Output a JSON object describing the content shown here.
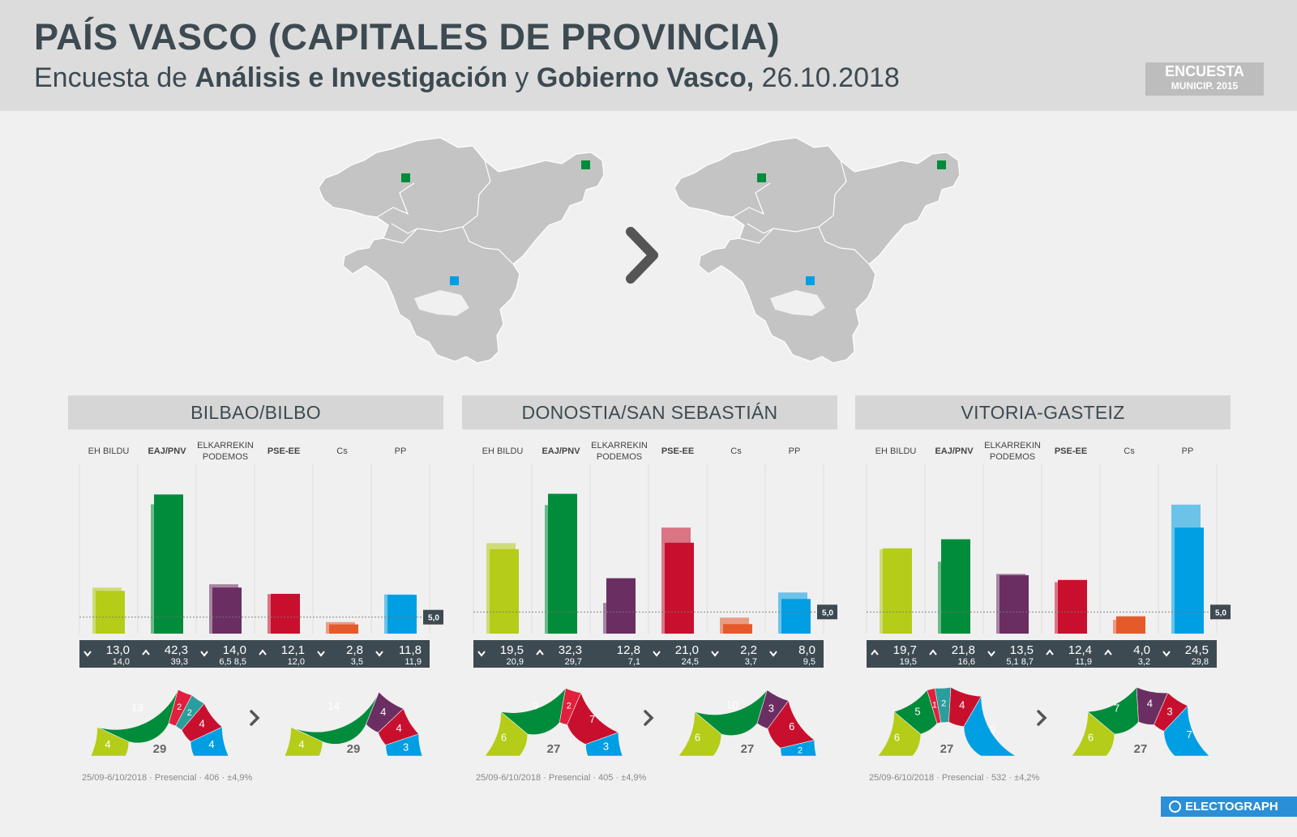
{
  "header": {
    "title": "PAÍS VASCO (CAPITALES DE PROVINCIA)",
    "subtitle_prefix": "Encuesta de ",
    "subtitle_source1": "Análisis e Investigación",
    "subtitle_and": " y ",
    "subtitle_source2": "Gobierno Vasco,",
    "subtitle_date": " 26.10.2018",
    "badge_line1": "ENCUESTA",
    "badge_line2": "MUNICIP. 2015"
  },
  "maps": {
    "left_markers": [
      "green",
      "green",
      "blue"
    ],
    "right_markers": [
      "green",
      "green",
      "blue"
    ]
  },
  "colors": {
    "ehbildu": "#b5cc18",
    "eajpnv": "#008c3a",
    "podemos": "#6b2e63",
    "pseee": "#c8102e",
    "cs": "#e55a2b",
    "pp": "#009fe3",
    "teal": "#2a9e9c",
    "bar_label_bg": "#3d4a52",
    "brand": "#2a8fd6"
  },
  "chart_data": [
    {
      "type": "bar",
      "title": "BILBAO/BILBO",
      "categories": [
        "EH BILDU",
        "EAJ/PNV",
        "ELKARREKIN PODEMOS",
        "PSE-EE",
        "Cs",
        "PP"
      ],
      "category_lines": [
        [
          "EH BILDU"
        ],
        [
          "EAJ/PNV"
        ],
        [
          "ELKARREKIN",
          "PODEMOS"
        ],
        [
          "PSE-EE"
        ],
        [
          "Cs"
        ],
        [
          "PP"
        ]
      ],
      "bold": [
        false,
        true,
        false,
        true,
        false,
        false
      ],
      "series": [
        {
          "name": "Encuesta",
          "values": [
            13.0,
            42.3,
            14.0,
            12.1,
            2.8,
            11.8
          ]
        },
        {
          "name": "Municip. 2015",
          "values": [
            14.0,
            39.3,
            15.0,
            12.0,
            3.5,
            11.9
          ]
        }
      ],
      "value_labels": [
        "13,0",
        "42,3",
        "14,0",
        "12,1",
        "2,8",
        "11,8"
      ],
      "prev_labels": [
        "14,0",
        "39,3",
        "6,5 8,5",
        "12,0",
        "3,5",
        "11,9"
      ],
      "trend": [
        "down",
        "up",
        "down",
        "up",
        "down",
        "down"
      ],
      "threshold": 5.0,
      "threshold_label": "5,0",
      "ylim": [
        0,
        50
      ],
      "seats_2015": {
        "total": "29",
        "values": [
          4,
          13,
          2,
          2,
          4,
          4
        ],
        "labels": [
          "4",
          "13",
          "2",
          "2",
          "4",
          "4"
        ],
        "party_keys": [
          "ehbildu",
          "eajpnv",
          "pseee_red",
          "teal",
          "pseee",
          "pp"
        ]
      },
      "seats_new": {
        "total": "29",
        "values": [
          4,
          14,
          4,
          4,
          3
        ],
        "labels": [
          "4",
          "14",
          "4",
          "4",
          "3"
        ],
        "party_keys": [
          "ehbildu",
          "eajpnv",
          "podemos",
          "pseee",
          "pp"
        ]
      },
      "footnote": "25/09-6/10/2018 · Presencial · 406 · ±4,9%"
    },
    {
      "type": "bar",
      "title": "DONOSTIA/SAN SEBASTIÁN",
      "categories": [
        "EH BILDU",
        "EAJ/PNV",
        "ELKARREKIN PODEMOS",
        "PSE-EE",
        "Cs",
        "PP"
      ],
      "category_lines": [
        [
          "EH BILDU"
        ],
        [
          "EAJ/PNV"
        ],
        [
          "ELKARREKIN",
          "PODEMOS"
        ],
        [
          "PSE-EE"
        ],
        [
          "Cs"
        ],
        [
          "PP"
        ]
      ],
      "bold": [
        false,
        true,
        false,
        true,
        false,
        false
      ],
      "series": [
        {
          "name": "Encuesta",
          "values": [
            19.5,
            32.3,
            12.8,
            21.0,
            2.2,
            8.0
          ]
        },
        {
          "name": "Municip. 2015",
          "values": [
            20.9,
            29.7,
            7.1,
            24.5,
            3.7,
            9.5
          ]
        }
      ],
      "value_labels": [
        "19,5",
        "32,3",
        "12,8",
        "21,0",
        "2,2",
        "8,0"
      ],
      "prev_labels": [
        "20,9",
        "29,7",
        "7,1",
        "24,5",
        "3,7",
        "9,5"
      ],
      "trend": [
        "down",
        "up",
        "",
        "down",
        "down",
        "down"
      ],
      "threshold": 5.0,
      "threshold_label": "5,0",
      "ylim": [
        0,
        38
      ],
      "seats_2015": {
        "total": "27",
        "values": [
          6,
          9,
          2,
          7,
          3
        ],
        "labels": [
          "6",
          "9",
          "2",
          "7",
          "3"
        ],
        "party_keys": [
          "ehbildu",
          "eajpnv",
          "pseee_red",
          "pseee",
          "pp"
        ]
      },
      "seats_new": {
        "total": "27",
        "values": [
          6,
          10,
          3,
          6,
          2
        ],
        "labels": [
          "6",
          "10",
          "3",
          "6",
          "2"
        ],
        "party_keys": [
          "ehbildu",
          "eajpnv",
          "podemos",
          "pseee",
          "pp"
        ]
      },
      "footnote": "25/09-6/10/2018 · Presencial · 405 · ±4,9%"
    },
    {
      "type": "bar",
      "title": "VITORIA-GASTEIZ",
      "categories": [
        "EH BILDU",
        "EAJ/PNV",
        "ELKARREKIN PODEMOS",
        "PSE-EE",
        "Cs",
        "PP"
      ],
      "category_lines": [
        [
          "EH BILDU"
        ],
        [
          "EAJ/PNV"
        ],
        [
          "ELKARREKIN",
          "PODEMOS"
        ],
        [
          "PSE-EE"
        ],
        [
          "Cs"
        ],
        [
          "PP"
        ]
      ],
      "bold": [
        false,
        true,
        false,
        true,
        false,
        false
      ],
      "series": [
        {
          "name": "Encuesta",
          "values": [
            19.7,
            21.8,
            13.5,
            12.4,
            4.0,
            24.5
          ]
        },
        {
          "name": "Municip. 2015",
          "values": [
            19.5,
            16.6,
            13.8,
            11.9,
            3.2,
            29.8
          ]
        }
      ],
      "value_labels": [
        "19,7",
        "21,8",
        "13,5",
        "12,4",
        "4,0",
        "24,5"
      ],
      "prev_labels": [
        "19,5",
        "16,6",
        "5,1 8,7",
        "11,9",
        "3,2",
        "29,8"
      ],
      "trend": [
        "up",
        "up",
        "down",
        "up",
        "up",
        "down"
      ],
      "threshold": 5.0,
      "threshold_label": "5,0",
      "ylim": [
        0,
        38
      ],
      "seats_2015": {
        "total": "27",
        "values": [
          6,
          5,
          1,
          2,
          4,
          9
        ],
        "labels": [
          "6",
          "5",
          "1",
          "2",
          "4",
          "9"
        ],
        "party_keys": [
          "ehbildu",
          "eajpnv",
          "pseee_red",
          "teal",
          "pseee",
          "pp"
        ]
      },
      "seats_new": {
        "total": "27",
        "values": [
          6,
          7,
          4,
          3,
          7
        ],
        "labels": [
          "6",
          "7",
          "4",
          "3",
          "7"
        ],
        "party_keys": [
          "ehbildu",
          "eajpnv",
          "podemos",
          "pseee",
          "pp"
        ]
      },
      "footnote": "25/09-6/10/2018 · Presencial · 532 · ±4,2%"
    }
  ],
  "footer": {
    "brand": "ELECTOGRAPH"
  }
}
